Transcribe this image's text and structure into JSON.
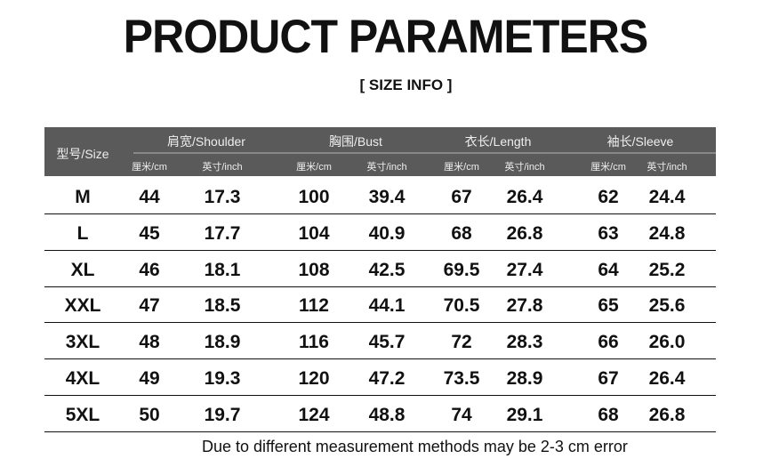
{
  "title": "PRODUCT PARAMETERS",
  "subtitle": "[ SIZE  INFO ]",
  "header": {
    "size": "型号/Size",
    "groups": [
      "肩宽/Shoulder",
      "胸围/Bust",
      "衣长/Length",
      "袖长/Sleeve"
    ],
    "cm": "厘米/cm",
    "inch": "英寸/inch"
  },
  "rows": [
    [
      "M",
      "44",
      "17.3",
      "100",
      "39.4",
      "67",
      "26.4",
      "62",
      "24.4"
    ],
    [
      "L",
      "45",
      "17.7",
      "104",
      "40.9",
      "68",
      "26.8",
      "63",
      "24.8"
    ],
    [
      "XL",
      "46",
      "18.1",
      "108",
      "42.5",
      "69.5",
      "27.4",
      "64",
      "25.2"
    ],
    [
      "XXL",
      "47",
      "18.5",
      "112",
      "44.1",
      "70.5",
      "27.8",
      "65",
      "25.6"
    ],
    [
      "3XL",
      "48",
      "18.9",
      "116",
      "45.7",
      "72",
      "28.3",
      "66",
      "26.0"
    ],
    [
      "4XL",
      "49",
      "19.3",
      "120",
      "47.2",
      "73.5",
      "28.9",
      "67",
      "26.4"
    ],
    [
      "5XL",
      "50",
      "19.7",
      "124",
      "48.8",
      "74",
      "29.1",
      "68",
      "26.8"
    ]
  ],
  "note": "Due to different measurement methods may be 2-3 cm error"
}
